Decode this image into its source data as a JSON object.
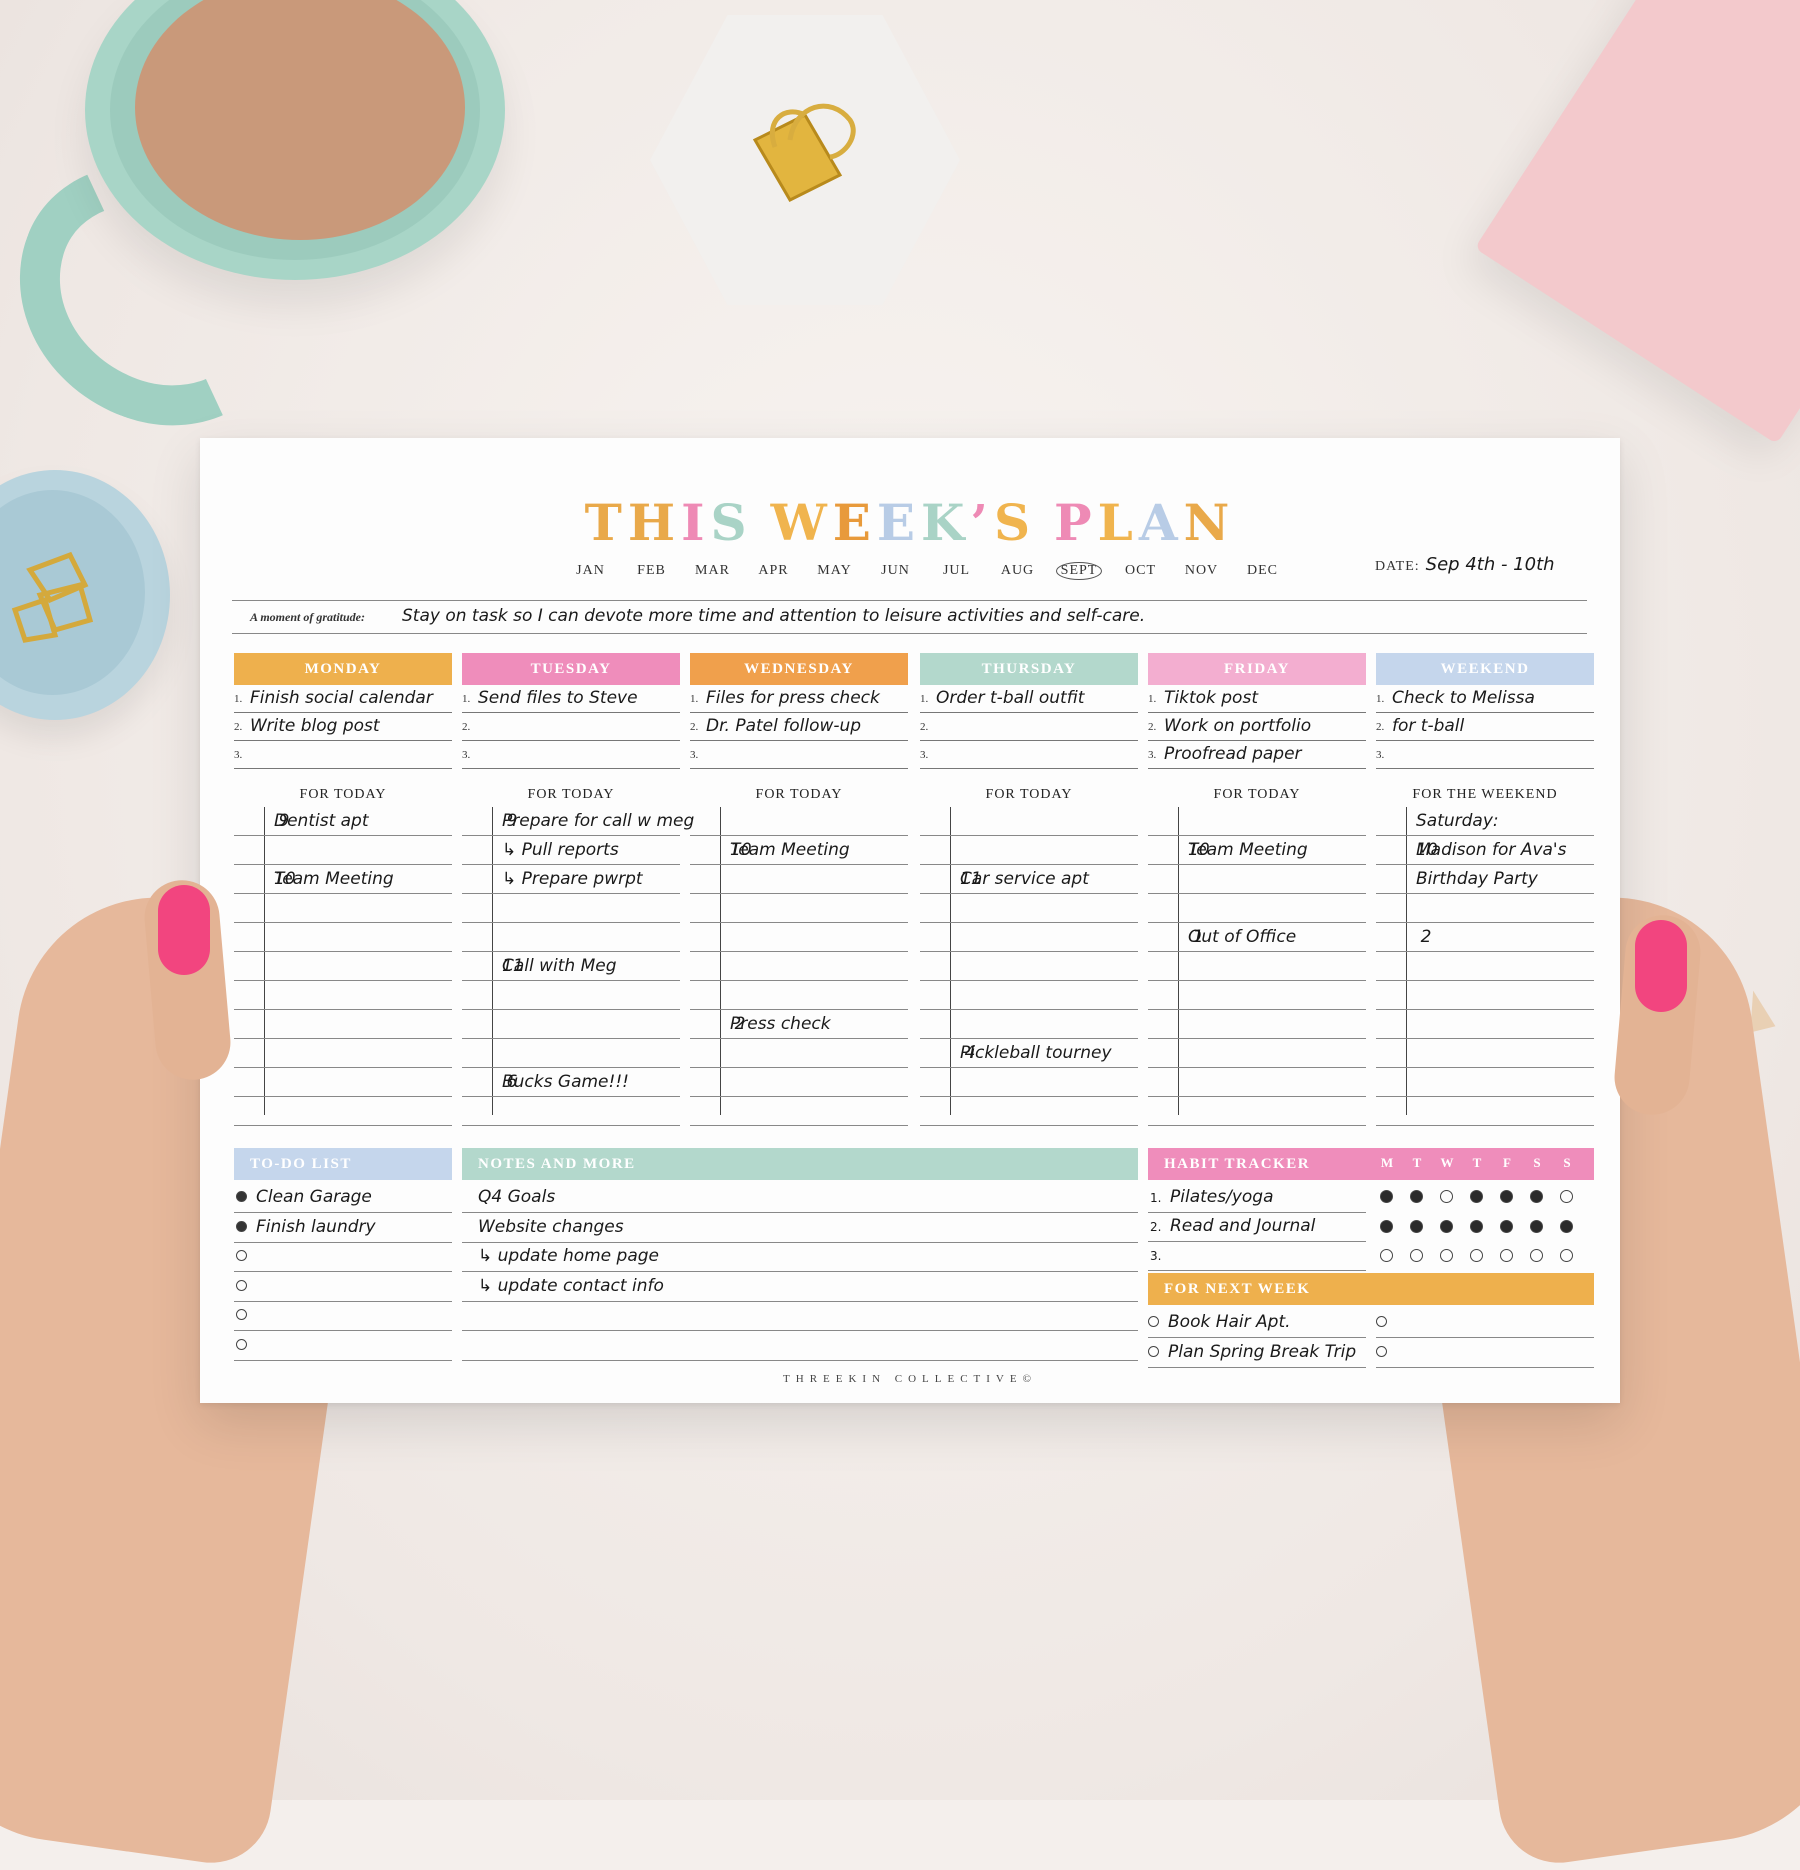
{
  "title": {
    "letters": [
      {
        "ch": "T",
        "color": "#e9a94a"
      },
      {
        "ch": "H",
        "color": "#e9a94a"
      },
      {
        "ch": "I",
        "color": "#ee8ab5"
      },
      {
        "ch": "S",
        "color": "#a9d3c6"
      },
      {
        "ch": " ",
        "color": "#ffffff"
      },
      {
        "ch": "W",
        "color": "#f0b44e"
      },
      {
        "ch": "E",
        "color": "#e89a3b"
      },
      {
        "ch": "E",
        "color": "#b8cce6"
      },
      {
        "ch": "K",
        "color": "#a9d3c6"
      },
      {
        "ch": "’",
        "color": "#ee8ab5"
      },
      {
        "ch": "S",
        "color": "#f0b44e"
      },
      {
        "ch": " ",
        "color": "#ffffff"
      },
      {
        "ch": "P",
        "color": "#ee8ab5"
      },
      {
        "ch": "L",
        "color": "#f0b44e"
      },
      {
        "ch": "A",
        "color": "#b8cce6"
      },
      {
        "ch": "N",
        "color": "#e9a94a"
      }
    ]
  },
  "months": [
    "JAN",
    "FEB",
    "MAR",
    "APR",
    "MAY",
    "JUN",
    "JUL",
    "AUG",
    "SEPT",
    "OCT",
    "NOV",
    "DEC"
  ],
  "selected_month": "SEPT",
  "date": {
    "label": "DATE:",
    "value": "Sep 4th - 10th"
  },
  "gratitude": {
    "label": "A moment of gratitude:",
    "text": "Stay on task so I can devote more time and attention to leisure activities and self-care."
  },
  "for_today_label": "FOR TODAY",
  "days": [
    {
      "name": "MONDAY",
      "color": "#eeb04d",
      "header": "FOR TODAY",
      "priorities": [
        "Finish social calendar",
        "Write blog post",
        ""
      ],
      "schedule": [
        [
          "9",
          "Dentist apt"
        ],
        [
          "",
          ""
        ],
        [
          "10",
          "Team Meeting"
        ],
        [
          "",
          ""
        ],
        [
          "",
          ""
        ],
        [
          "",
          ""
        ],
        [
          "",
          ""
        ],
        [
          "",
          ""
        ],
        [
          "",
          ""
        ],
        [
          "",
          ""
        ],
        [
          "",
          ""
        ]
      ]
    },
    {
      "name": "TUESDAY",
      "color": "#ef8dbb",
      "header": "FOR TODAY",
      "priorities": [
        "Send files to Steve",
        "",
        ""
      ],
      "schedule": [
        [
          "9",
          "Prepare for call w meg"
        ],
        [
          "",
          "↳ Pull reports"
        ],
        [
          "",
          "↳ Prepare pwrpt"
        ],
        [
          "",
          ""
        ],
        [
          "",
          ""
        ],
        [
          "11",
          "Call with Meg"
        ],
        [
          "",
          ""
        ],
        [
          "",
          ""
        ],
        [
          "",
          ""
        ],
        [
          "6",
          "Bucks Game!!!"
        ],
        [
          "",
          ""
        ]
      ]
    },
    {
      "name": "WEDNESDAY",
      "color": "#f0a04c",
      "header": "FOR TODAY",
      "priorities": [
        "Files for press check",
        "Dr. Patel follow-up",
        ""
      ],
      "schedule": [
        [
          "",
          ""
        ],
        [
          "10",
          "Team Meeting"
        ],
        [
          "",
          ""
        ],
        [
          "",
          ""
        ],
        [
          "",
          ""
        ],
        [
          "",
          ""
        ],
        [
          "",
          ""
        ],
        [
          "2",
          "Press check"
        ],
        [
          "",
          ""
        ],
        [
          "",
          ""
        ],
        [
          "",
          ""
        ]
      ]
    },
    {
      "name": "THURSDAY",
      "color": "#b3d8cc",
      "header": "FOR TODAY",
      "priorities": [
        "Order t-ball outfit",
        "",
        ""
      ],
      "schedule": [
        [
          "",
          ""
        ],
        [
          "",
          ""
        ],
        [
          "11",
          "Car service apt"
        ],
        [
          "",
          ""
        ],
        [
          "",
          ""
        ],
        [
          "",
          ""
        ],
        [
          "",
          ""
        ],
        [
          "",
          ""
        ],
        [
          "4",
          "Pickleball tourney"
        ],
        [
          "",
          ""
        ],
        [
          "",
          ""
        ]
      ]
    },
    {
      "name": "FRIDAY",
      "color": "#f3aed0",
      "header": "FOR TODAY",
      "priorities": [
        "Tiktok post",
        "Work on portfolio",
        "Proofread paper"
      ],
      "schedule": [
        [
          "",
          ""
        ],
        [
          "10",
          "Team Meeting"
        ],
        [
          "",
          ""
        ],
        [
          "",
          ""
        ],
        [
          "1",
          "Out of Office"
        ],
        [
          "",
          ""
        ],
        [
          "",
          ""
        ],
        [
          "",
          ""
        ],
        [
          "",
          ""
        ],
        [
          "",
          ""
        ],
        [
          "",
          ""
        ]
      ]
    },
    {
      "name": "WEEKEND",
      "color": "#c5d6ec",
      "header": "FOR THE WEEKEND",
      "priorities": [
        "   Check to Melissa",
        "         for t-ball",
        ""
      ],
      "schedule": [
        [
          "",
          "Saturday:"
        ],
        [
          "10",
          "Madison for Ava's"
        ],
        [
          "",
          "Birthday Party"
        ],
        [
          "",
          ""
        ],
        [
          "2",
          ""
        ],
        [
          "",
          ""
        ],
        [
          "",
          ""
        ],
        [
          "",
          ""
        ],
        [
          "",
          ""
        ],
        [
          "",
          ""
        ],
        [
          "",
          ""
        ]
      ]
    }
  ],
  "todo": {
    "title": "TO-DO LIST",
    "color": "#c5d6ec",
    "items": [
      {
        "text": "Clean Garage",
        "done": true
      },
      {
        "text": "Finish laundry",
        "done": true
      },
      {
        "text": "",
        "done": false
      },
      {
        "text": "",
        "done": false
      },
      {
        "text": "",
        "done": false
      },
      {
        "text": "",
        "done": false
      }
    ]
  },
  "notes": {
    "title": "NOTES AND MORE",
    "color": "#b3d8cc",
    "items": [
      "Q4 Goals",
      "Website changes",
      "↳ update home page",
      "↳ update contact info",
      "",
      ""
    ]
  },
  "habits": {
    "title": "HABIT TRACKER",
    "color": "#ef8dbb",
    "days": [
      "M",
      "T",
      "W",
      "T",
      "F",
      "S",
      "S"
    ],
    "items": [
      {
        "text": "Pilates/yoga",
        "checks": [
          1,
          1,
          0,
          1,
          1,
          1,
          0
        ]
      },
      {
        "text": "Read and Journal",
        "checks": [
          1,
          1,
          1,
          1,
          1,
          1,
          1
        ]
      },
      {
        "text": "",
        "checks": [
          0,
          0,
          0,
          0,
          0,
          0,
          0
        ]
      }
    ]
  },
  "next_week": {
    "title": "FOR NEXT WEEK",
    "color": "#eeb04d",
    "left": [
      "Book Hair Apt.",
      "Plan Spring Break Trip"
    ],
    "right": [
      "",
      ""
    ]
  },
  "footer": "THREEKIN COLLECTIVE©"
}
